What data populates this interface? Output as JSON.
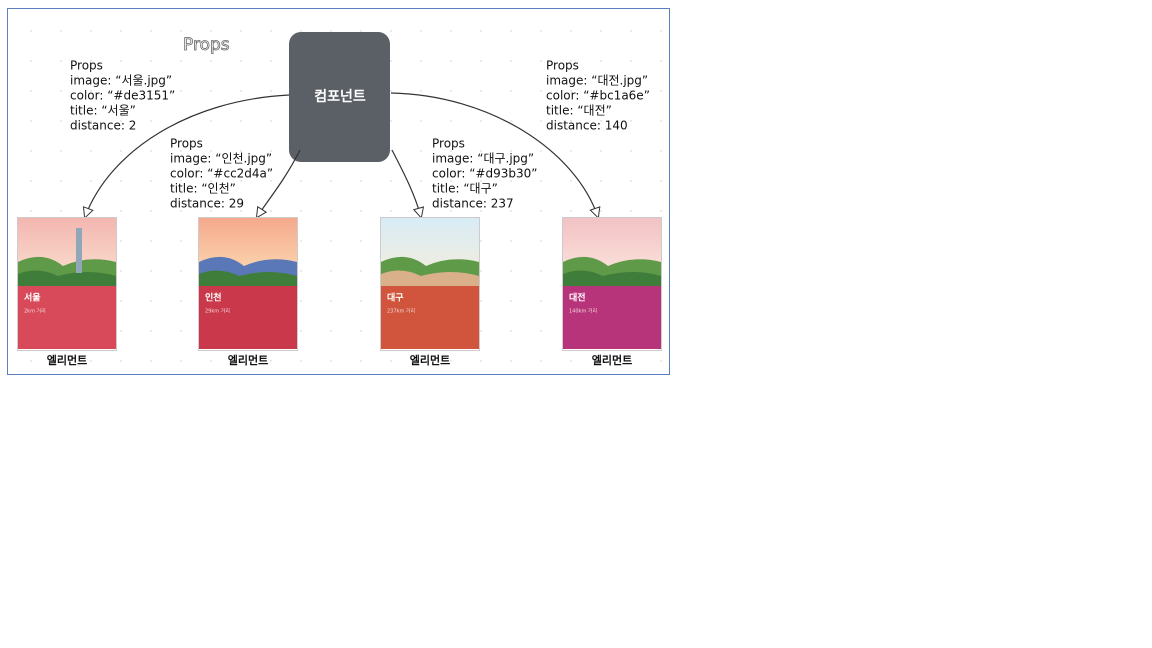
{
  "title": "Props",
  "component": {
    "label": "컴포넌트"
  },
  "props": [
    {
      "lines": [
        "Props",
        "image: “서울.jpg”",
        "color: “#de3151”",
        "title: “서울”",
        "distance: 2"
      ]
    },
    {
      "lines": [
        "Props",
        "image: “인천.jpg”",
        "color: “#cc2d4a”",
        "title: “인천”",
        "distance: 29"
      ]
    },
    {
      "lines": [
        "Props",
        "image: “대구.jpg”",
        "color: “#d93b30”",
        "title: “대구”",
        "distance: 237"
      ]
    },
    {
      "lines": [
        "Props",
        "image: “대전.jpg”",
        "color: “#bc1a6e”",
        "title: “대전”",
        "distance: 140"
      ]
    }
  ],
  "cards": [
    {
      "title": "서울",
      "subtitle": "2km 거리",
      "caption": "엘리먼트"
    },
    {
      "title": "인천",
      "subtitle": "29km 거리",
      "caption": "엘리먼트"
    },
    {
      "title": "대구",
      "subtitle": "237km 거리",
      "caption": "엘리먼트"
    },
    {
      "title": "대전",
      "subtitle": "140km 거리",
      "caption": "엘리먼트"
    }
  ]
}
